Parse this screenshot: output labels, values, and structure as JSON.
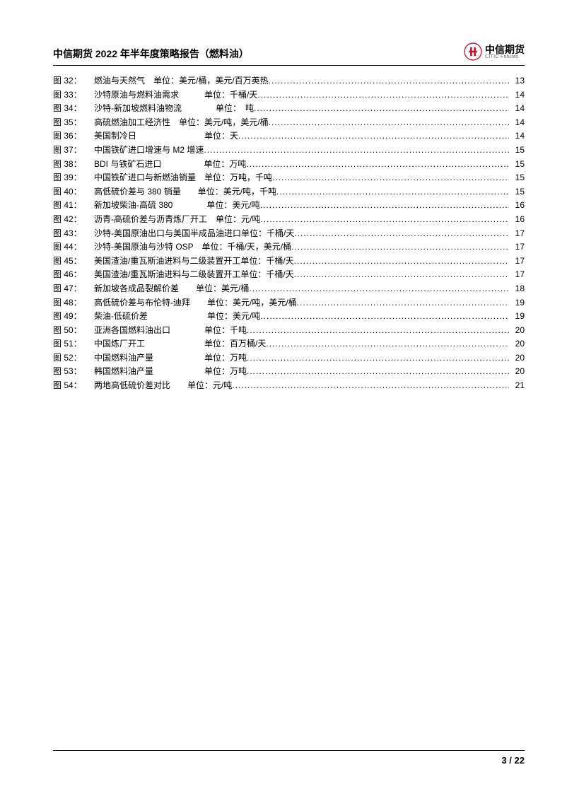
{
  "header": {
    "title": "中信期货 2022 年半年度策略报告（燃料油）",
    "logo_cn": "中信期货",
    "logo_en": "CITIC Futures",
    "logo_red": "#c8102e"
  },
  "toc": {
    "items": [
      {
        "num": "图 32：",
        "desc": "燃油与天然气　单位：美元/桶，美元/百万英热",
        "page": "13"
      },
      {
        "num": "图 33：",
        "desc": "沙特原油与燃料油需求　　　单位：千桶/天",
        "page": "14"
      },
      {
        "num": "图 34：",
        "desc": "沙特-新加坡燃料油物流　　　　单位：　吨",
        "page": "14"
      },
      {
        "num": "图 35：",
        "desc": "高硫燃油加工经济性　单位：美元/吨，美元/桶",
        "page": "14"
      },
      {
        "num": "图 36：",
        "desc": "美国制冷日　　　　　　　　单位：天",
        "page": "14"
      },
      {
        "num": "图 37：",
        "desc": "中国铁矿进口增速与 M2 增速",
        "page": "15"
      },
      {
        "num": "图 38：",
        "desc": "BDI 与铁矿石进口　　　　　单位：万吨",
        "page": "15"
      },
      {
        "num": "图 39：",
        "desc": "中国铁矿进口与新燃油销量　单位：万吨，千吨",
        "page": "15"
      },
      {
        "num": "图 40：",
        "desc": "高低硫价差与 380 销量　　单位：美元/吨，千吨",
        "page": "15"
      },
      {
        "num": "图 41：",
        "desc": "新加坡柴油-高硫 380　　　　单位：美元/吨",
        "page": "16"
      },
      {
        "num": "图 42：",
        "desc": "沥青-高硫价差与沥青炼厂开工　单位：元/吨",
        "page": "16"
      },
      {
        "num": "图 43：",
        "desc": "沙特-美国原油出口与美国半成品油进口单位：千桶/天",
        "page": "17"
      },
      {
        "num": "图 44：",
        "desc": "沙特-美国原油与沙特 OSP　单位：千桶/天，美元/桶",
        "page": "17"
      },
      {
        "num": "图 45：",
        "desc": "美国渣油/重瓦斯油进料与二级装置开工单位：千桶/天",
        "page": "17"
      },
      {
        "num": "图 46：",
        "desc": "美国渣油/重瓦斯油进料与二级装置开工单位：千桶/天",
        "page": "17"
      },
      {
        "num": "图 47：",
        "desc": "新加坡各成品裂解价差　　单位：美元/桶",
        "page": "18"
      },
      {
        "num": "图 48：",
        "desc": "高低硫价差与布伦特-迪拜　　单位：美元/吨，美元/桶",
        "page": "19"
      },
      {
        "num": "图 49：",
        "desc": "柴油-低硫价差　　　　　　　单位：美元/吨",
        "page": "19"
      },
      {
        "num": "图 50：",
        "desc": "亚洲各国燃料油出口　　　　单位：千吨",
        "page": "20"
      },
      {
        "num": "图 51：",
        "desc": "中国炼厂开工　　　　　　　单位：百万桶/天",
        "page": "20"
      },
      {
        "num": "图 52：",
        "desc": "中国燃料油产量　　　　　　单位：万吨",
        "page": "20"
      },
      {
        "num": "图 53：",
        "desc": "韩国燃料油产量　　　　　　单位：万吨",
        "page": "20"
      },
      {
        "num": "图 54：",
        "desc": "两地高低硫价差对比　　单位：元/吨",
        "page": "21"
      }
    ]
  },
  "footer": {
    "page": "3",
    "sep": " / ",
    "total": "22"
  },
  "style": {
    "font_size_toc": 12,
    "font_size_header": 14,
    "text_color": "#000000",
    "background_color": "#ffffff",
    "border_color": "#000000"
  }
}
